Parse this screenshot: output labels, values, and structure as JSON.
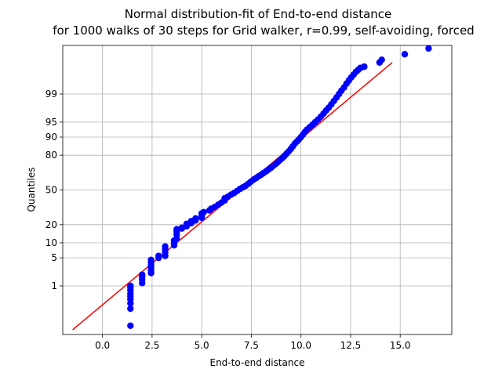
{
  "chart_data": {
    "type": "scatter",
    "title_lines": [
      "Normal distribution-fit of End-to-end distance",
      "for 1000 walks of 30 steps for Grid walker, r=0.99, self-avoiding, forced"
    ],
    "xlabel": "End-to-end distance",
    "ylabel": "Quantiles",
    "xlim": [
      -2.0,
      17.6
    ],
    "x_ticks": [
      0.0,
      2.5,
      5.0,
      7.5,
      10.0,
      12.5,
      15.0
    ],
    "x_tick_labels": [
      "0.0",
      "2.5",
      "5.0",
      "7.5",
      "10.0",
      "12.5",
      "15.0"
    ],
    "y_scale": "normal-probability",
    "y_ticks": [
      1,
      5,
      10,
      20,
      50,
      80,
      90,
      95,
      99
    ],
    "y_tick_labels": [
      "1",
      "5",
      "10",
      "20",
      "50",
      "80",
      "90",
      "95",
      "99"
    ],
    "grid": true,
    "legend": "none",
    "fit_line": {
      "color": "#ff0000",
      "x": [
        -1.5,
        14.6
      ],
      "quantile_percent": [
        0.035,
        99.9
      ]
    },
    "points_color": "#0000ff",
    "points": [
      [
        1.41,
        0.05
      ],
      [
        1.41,
        0.2
      ],
      [
        1.41,
        0.3
      ],
      [
        1.41,
        0.4
      ],
      [
        1.41,
        0.5
      ],
      [
        1.41,
        0.6
      ],
      [
        1.41,
        0.75
      ],
      [
        1.41,
        0.9
      ],
      [
        1.41,
        1.0
      ],
      [
        2.0,
        1.2
      ],
      [
        2.0,
        1.5
      ],
      [
        2.0,
        1.8
      ],
      [
        2.0,
        2.0
      ],
      [
        2.45,
        2.2
      ],
      [
        2.45,
        2.6
      ],
      [
        2.45,
        3.0
      ],
      [
        2.45,
        3.5
      ],
      [
        2.45,
        4.0
      ],
      [
        2.45,
        4.5
      ],
      [
        2.83,
        5.0
      ],
      [
        2.83,
        5.5
      ],
      [
        3.16,
        5.5
      ],
      [
        3.16,
        6.5
      ],
      [
        3.16,
        7.5
      ],
      [
        3.16,
        8.5
      ],
      [
        3.61,
        9.0
      ],
      [
        3.61,
        10.0
      ],
      [
        3.61,
        11.0
      ],
      [
        3.74,
        12.0
      ],
      [
        3.74,
        14.0
      ],
      [
        3.74,
        15.5
      ],
      [
        3.74,
        17.0
      ],
      [
        4.0,
        17.5
      ],
      [
        4.0,
        18.0
      ],
      [
        4.24,
        19.0
      ],
      [
        4.24,
        20.5
      ],
      [
        4.47,
        21.0
      ],
      [
        4.47,
        22.5
      ],
      [
        4.69,
        23.0
      ],
      [
        4.69,
        24.5
      ],
      [
        5.0,
        25.0
      ],
      [
        5.0,
        26.5
      ],
      [
        5.0,
        28.5
      ],
      [
        5.1,
        29.5
      ],
      [
        5.39,
        31.0
      ],
      [
        5.48,
        32.5
      ],
      [
        5.66,
        34.0
      ],
      [
        5.83,
        36.0
      ],
      [
        6.0,
        38.0
      ],
      [
        6.16,
        40.0
      ],
      [
        6.16,
        42.0
      ],
      [
        6.32,
        43.5
      ],
      [
        6.48,
        45.5
      ],
      [
        6.63,
        47.0
      ],
      [
        6.78,
        49.0
      ],
      [
        6.93,
        51.0
      ],
      [
        7.07,
        52.5
      ],
      [
        7.21,
        54.0
      ],
      [
        7.35,
        56.0
      ],
      [
        7.48,
        58.0
      ],
      [
        7.62,
        60.0
      ],
      [
        7.75,
        61.5
      ],
      [
        7.87,
        63.0
      ],
      [
        8.0,
        64.5
      ],
      [
        8.12,
        66.0
      ],
      [
        8.25,
        67.5
      ],
      [
        8.37,
        69.0
      ],
      [
        8.49,
        70.5
      ],
      [
        8.6,
        72.0
      ],
      [
        8.72,
        73.5
      ],
      [
        8.83,
        75.0
      ],
      [
        8.94,
        76.5
      ],
      [
        9.06,
        78.0
      ],
      [
        9.17,
        79.5
      ],
      [
        9.27,
        81.0
      ],
      [
        9.38,
        82.5
      ],
      [
        9.49,
        84.0
      ],
      [
        9.59,
        85.5
      ],
      [
        9.7,
        87.0
      ],
      [
        9.8,
        88.0
      ],
      [
        9.9,
        89.0
      ],
      [
        10.0,
        90.0
      ],
      [
        10.1,
        91.0
      ],
      [
        10.2,
        92.0
      ],
      [
        10.3,
        92.8
      ],
      [
        10.44,
        93.6
      ],
      [
        10.58,
        94.3
      ],
      [
        10.72,
        95.0
      ],
      [
        10.86,
        95.6
      ],
      [
        11.0,
        96.2
      ],
      [
        11.14,
        96.8
      ],
      [
        11.27,
        97.3
      ],
      [
        11.4,
        97.7
      ],
      [
        11.53,
        98.1
      ],
      [
        11.66,
        98.45
      ],
      [
        11.79,
        98.75
      ],
      [
        11.92,
        99.0
      ],
      [
        12.04,
        99.2
      ],
      [
        12.17,
        99.35
      ],
      [
        12.29,
        99.5
      ],
      [
        12.41,
        99.6
      ],
      [
        12.53,
        99.68
      ],
      [
        12.65,
        99.74
      ],
      [
        12.77,
        99.79
      ],
      [
        12.88,
        99.82
      ],
      [
        13.0,
        99.845
      ],
      [
        13.19,
        99.86
      ],
      [
        13.96,
        99.9
      ],
      [
        14.07,
        99.92
      ],
      [
        15.23,
        99.95
      ],
      [
        16.43,
        99.97
      ]
    ]
  }
}
